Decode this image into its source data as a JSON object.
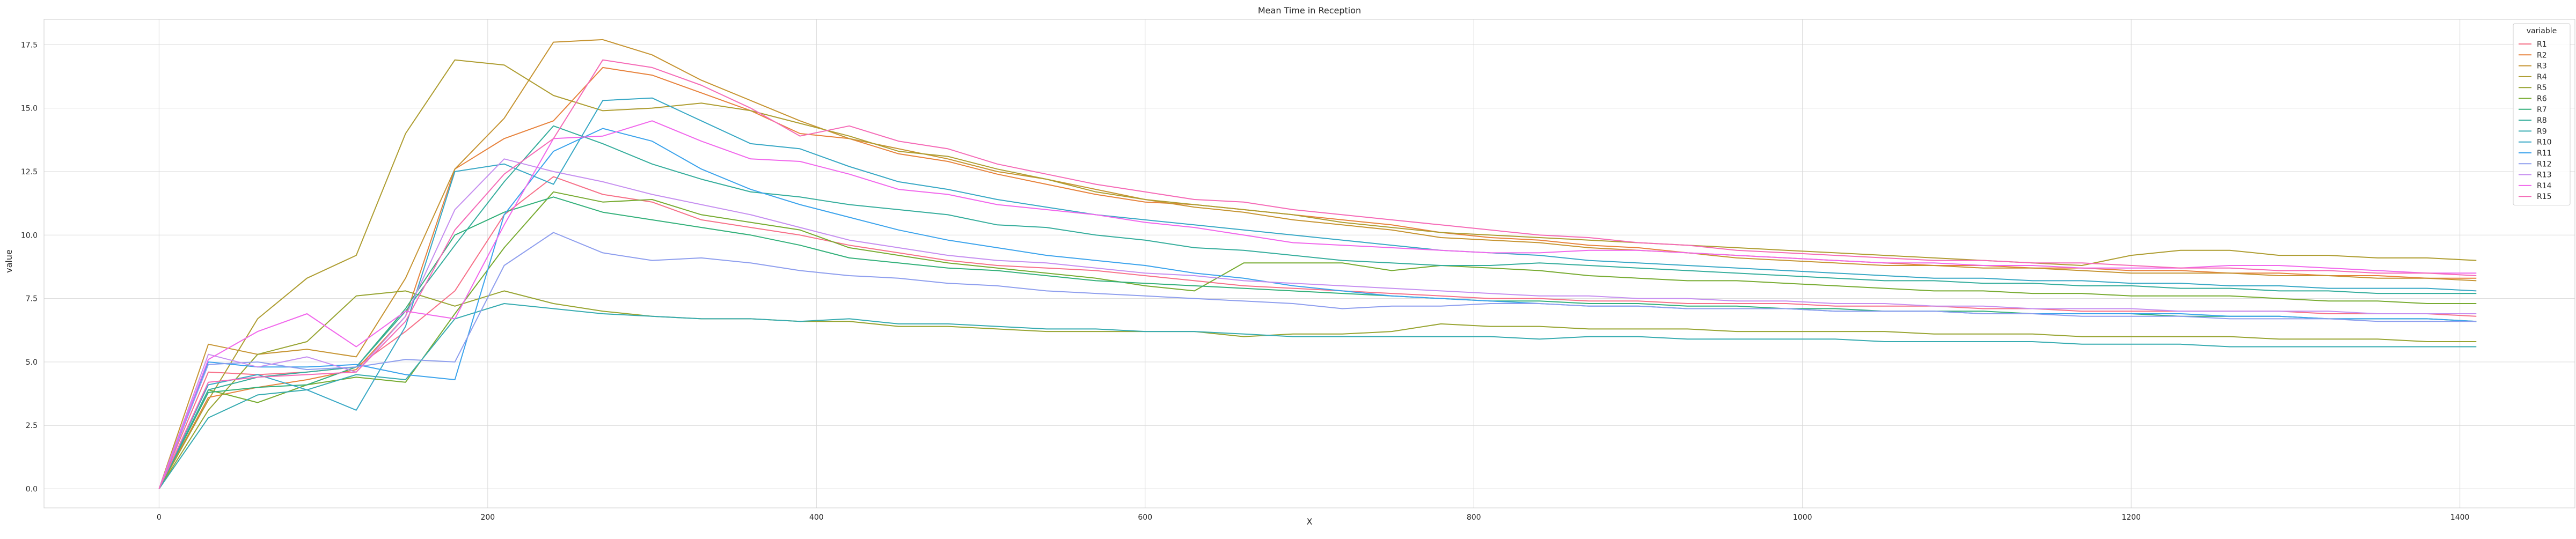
{
  "chart_data": {
    "type": "line",
    "title": "Mean Time in Reception",
    "xlabel": "X",
    "ylabel": "value",
    "xlim": [
      -70,
      1470
    ],
    "ylim": [
      -0.75,
      18.5
    ],
    "xticks": [
      0,
      200,
      400,
      600,
      800,
      1000,
      1200,
      1400
    ],
    "yticks": [
      0.0,
      2.5,
      5.0,
      7.5,
      10.0,
      12.5,
      15.0,
      17.5
    ],
    "xtick_labels": [
      "0",
      "200",
      "400",
      "600",
      "800",
      "1000",
      "1200",
      "1400"
    ],
    "ytick_labels": [
      "0.0",
      "2.5",
      "5.0",
      "7.5",
      "10.0",
      "12.5",
      "15.0",
      "17.5"
    ],
    "grid": true,
    "legend": {
      "title": "variable",
      "position": "top-right"
    },
    "x": [
      0,
      30,
      60,
      90,
      120,
      150,
      180,
      210,
      240,
      270,
      300,
      330,
      360,
      390,
      420,
      450,
      480,
      510,
      540,
      570,
      600,
      630,
      660,
      690,
      720,
      750,
      780,
      810,
      840,
      870,
      900,
      930,
      960,
      990,
      1020,
      1050,
      1080,
      1110,
      1140,
      1170,
      1200,
      1230,
      1260,
      1290,
      1320,
      1350,
      1380,
      1410
    ],
    "series": [
      {
        "name": "R1",
        "color": "#f77189",
        "values": [
          0,
          4.6,
          4.5,
          4.6,
          4.8,
          6.2,
          7.8,
          10.8,
          12.3,
          11.6,
          11.3,
          10.6,
          10.3,
          10.0,
          9.6,
          9.3,
          9.0,
          8.8,
          8.7,
          8.6,
          8.4,
          8.2,
          8.0,
          7.9,
          7.8,
          7.7,
          7.6,
          7.5,
          7.5,
          7.4,
          7.4,
          7.3,
          7.3,
          7.3,
          7.2,
          7.2,
          7.2,
          7.1,
          7.1,
          7.0,
          7.0,
          7.0,
          7.0,
          7.0,
          6.9,
          6.9,
          6.9,
          6.8
        ]
      },
      {
        "name": "R2",
        "color": "#e7823c",
        "values": [
          0,
          3.6,
          4.0,
          4.3,
          4.7,
          6.8,
          12.6,
          13.8,
          14.5,
          16.6,
          16.3,
          15.6,
          14.9,
          14.0,
          13.8,
          13.2,
          12.9,
          12.4,
          12.0,
          11.6,
          11.3,
          11.2,
          11.0,
          10.8,
          10.6,
          10.4,
          10.1,
          9.9,
          9.8,
          9.6,
          9.5,
          9.3,
          9.2,
          9.1,
          9.0,
          8.9,
          8.8,
          8.8,
          8.7,
          8.7,
          8.6,
          8.6,
          8.5,
          8.5,
          8.4,
          8.4,
          8.3,
          8.3
        ]
      },
      {
        "name": "R3",
        "color": "#c69432",
        "values": [
          0,
          5.7,
          5.3,
          5.5,
          5.2,
          8.3,
          12.6,
          14.6,
          17.6,
          17.7,
          17.1,
          16.1,
          15.3,
          14.5,
          13.8,
          13.4,
          13.0,
          12.5,
          12.2,
          11.8,
          11.4,
          11.1,
          10.9,
          10.6,
          10.4,
          10.2,
          9.9,
          9.8,
          9.7,
          9.5,
          9.4,
          9.3,
          9.1,
          9.0,
          8.9,
          8.8,
          8.8,
          8.7,
          8.7,
          8.6,
          8.5,
          8.5,
          8.5,
          8.4,
          8.4,
          8.3,
          8.3,
          8.2
        ]
      },
      {
        "name": "R4",
        "color": "#ae9d31",
        "values": [
          0,
          3.5,
          6.7,
          8.3,
          9.2,
          14.0,
          16.9,
          16.7,
          15.5,
          14.9,
          15.0,
          15.2,
          14.9,
          14.4,
          13.9,
          13.3,
          13.1,
          12.6,
          12.2,
          11.7,
          11.4,
          11.2,
          11.0,
          10.8,
          10.5,
          10.3,
          10.1,
          10.0,
          9.9,
          9.8,
          9.7,
          9.6,
          9.5,
          9.4,
          9.3,
          9.2,
          9.1,
          9.0,
          8.9,
          8.8,
          9.2,
          9.4,
          9.4,
          9.2,
          9.2,
          9.1,
          9.1,
          9.0
        ]
      },
      {
        "name": "R5",
        "color": "#97a431",
        "values": [
          0,
          3.1,
          5.3,
          5.8,
          7.6,
          7.8,
          7.2,
          7.8,
          7.3,
          7.0,
          6.8,
          6.7,
          6.7,
          6.6,
          6.6,
          6.4,
          6.4,
          6.3,
          6.2,
          6.2,
          6.2,
          6.2,
          6.0,
          6.1,
          6.1,
          6.2,
          6.5,
          6.4,
          6.4,
          6.3,
          6.3,
          6.3,
          6.2,
          6.2,
          6.2,
          6.2,
          6.1,
          6.1,
          6.1,
          6.0,
          6.0,
          6.0,
          6.0,
          5.9,
          5.9,
          5.9,
          5.8,
          5.8
        ]
      },
      {
        "name": "R6",
        "color": "#77ab31",
        "values": [
          0,
          3.9,
          3.4,
          4.1,
          4.4,
          4.2,
          6.9,
          9.5,
          11.7,
          11.3,
          11.4,
          10.8,
          10.5,
          10.2,
          9.5,
          9.2,
          8.9,
          8.7,
          8.5,
          8.3,
          8.0,
          7.8,
          8.9,
          8.9,
          8.9,
          8.6,
          8.8,
          8.7,
          8.6,
          8.4,
          8.3,
          8.2,
          8.2,
          8.1,
          8.0,
          7.9,
          7.8,
          7.8,
          7.7,
          7.7,
          7.6,
          7.6,
          7.6,
          7.5,
          7.4,
          7.4,
          7.3,
          7.3
        ]
      },
      {
        "name": "R7",
        "color": "#33b07a",
        "values": [
          0,
          3.8,
          4.0,
          4.1,
          4.8,
          7.1,
          10.0,
          10.9,
          11.5,
          10.9,
          10.6,
          10.3,
          10.0,
          9.6,
          9.1,
          8.9,
          8.7,
          8.6,
          8.4,
          8.2,
          8.1,
          8.0,
          7.9,
          7.8,
          7.7,
          7.6,
          7.5,
          7.4,
          7.4,
          7.3,
          7.3,
          7.2,
          7.2,
          7.1,
          7.1,
          7.0,
          7.0,
          7.0,
          6.9,
          6.9,
          6.9,
          6.8,
          6.8,
          6.8,
          6.7,
          6.7,
          6.7,
          6.6
        ]
      },
      {
        "name": "R8",
        "color": "#35ad9c",
        "values": [
          0,
          3.9,
          4.4,
          4.6,
          4.8,
          7.0,
          9.6,
          12.1,
          14.3,
          13.6,
          12.8,
          12.2,
          11.7,
          11.5,
          11.2,
          11.0,
          10.8,
          10.4,
          10.3,
          10.0,
          9.8,
          9.5,
          9.4,
          9.2,
          9.0,
          8.9,
          8.8,
          8.8,
          8.9,
          8.8,
          8.7,
          8.6,
          8.5,
          8.4,
          8.3,
          8.2,
          8.2,
          8.1,
          8.1,
          8.0,
          8.0,
          7.9,
          7.9,
          7.8,
          7.8,
          7.7,
          7.7,
          7.7
        ]
      },
      {
        "name": "R9",
        "color": "#36abb0",
        "values": [
          0,
          2.8,
          3.7,
          3.9,
          4.5,
          4.3,
          6.7,
          7.3,
          7.1,
          6.9,
          6.8,
          6.7,
          6.7,
          6.6,
          6.7,
          6.5,
          6.5,
          6.4,
          6.3,
          6.3,
          6.2,
          6.2,
          6.1,
          6.0,
          6.0,
          6.0,
          6.0,
          6.0,
          5.9,
          6.0,
          6.0,
          5.9,
          5.9,
          5.9,
          5.9,
          5.8,
          5.8,
          5.8,
          5.8,
          5.7,
          5.7,
          5.7,
          5.6,
          5.6,
          5.6,
          5.6,
          5.6,
          5.6
        ]
      },
      {
        "name": "R10",
        "color": "#38a8c5",
        "values": [
          0,
          4.1,
          4.5,
          3.9,
          3.1,
          6.4,
          12.5,
          12.8,
          12.0,
          15.3,
          15.4,
          14.5,
          13.6,
          13.4,
          12.7,
          12.1,
          11.8,
          11.4,
          11.1,
          10.8,
          10.6,
          10.4,
          10.2,
          10.0,
          9.8,
          9.6,
          9.4,
          9.3,
          9.2,
          9.0,
          8.9,
          8.8,
          8.7,
          8.6,
          8.5,
          8.4,
          8.3,
          8.3,
          8.2,
          8.2,
          8.1,
          8.1,
          8.0,
          8.0,
          7.9,
          7.9,
          7.9,
          7.8
        ]
      },
      {
        "name": "R11",
        "color": "#3ba3ec",
        "values": [
          0,
          5.0,
          4.8,
          4.8,
          4.9,
          4.5,
          4.3,
          10.8,
          13.3,
          14.2,
          13.7,
          12.6,
          11.8,
          11.2,
          10.7,
          10.2,
          9.8,
          9.5,
          9.2,
          9.0,
          8.8,
          8.5,
          8.3,
          8.0,
          7.8,
          7.6,
          7.5,
          7.4,
          7.3,
          7.2,
          7.2,
          7.1,
          7.1,
          7.1,
          7.0,
          7.0,
          7.0,
          6.9,
          6.9,
          6.9,
          6.9,
          6.9,
          6.8,
          6.8,
          6.7,
          6.7,
          6.7,
          6.6
        ]
      },
      {
        "name": "R12",
        "color": "#8e9eee",
        "values": [
          0,
          4.9,
          5.0,
          4.7,
          4.8,
          5.1,
          5.0,
          8.8,
          10.1,
          9.3,
          9.0,
          9.1,
          8.9,
          8.6,
          8.4,
          8.3,
          8.1,
          8.0,
          7.8,
          7.7,
          7.6,
          7.5,
          7.4,
          7.3,
          7.1,
          7.2,
          7.2,
          7.3,
          7.3,
          7.2,
          7.2,
          7.1,
          7.1,
          7.1,
          7.0,
          7.0,
          7.0,
          6.9,
          6.9,
          6.8,
          6.8,
          6.8,
          6.7,
          6.7,
          6.7,
          6.6,
          6.6,
          6.6
        ]
      },
      {
        "name": "R13",
        "color": "#c68ff0",
        "values": [
          0,
          5.3,
          4.8,
          5.2,
          4.6,
          6.8,
          11.0,
          13.0,
          12.5,
          12.1,
          11.6,
          11.2,
          10.8,
          10.3,
          9.8,
          9.5,
          9.2,
          9.0,
          8.9,
          8.7,
          8.5,
          8.4,
          8.2,
          8.1,
          8.0,
          7.9,
          7.8,
          7.7,
          7.6,
          7.6,
          7.5,
          7.5,
          7.4,
          7.4,
          7.3,
          7.3,
          7.2,
          7.2,
          7.1,
          7.1,
          7.1,
          7.0,
          7.0,
          7.0,
          7.0,
          6.9,
          6.9,
          6.9
        ]
      },
      {
        "name": "R14",
        "color": "#f167ec",
        "values": [
          0,
          5.1,
          6.2,
          6.9,
          5.6,
          7.0,
          6.7,
          10.4,
          13.8,
          13.9,
          14.5,
          13.7,
          13.0,
          12.9,
          12.4,
          11.8,
          11.6,
          11.2,
          11.0,
          10.8,
          10.5,
          10.3,
          10.0,
          9.7,
          9.6,
          9.5,
          9.4,
          9.3,
          9.3,
          9.4,
          9.4,
          9.3,
          9.2,
          9.1,
          9.0,
          8.9,
          8.9,
          8.8,
          8.8,
          8.7,
          8.7,
          8.7,
          8.8,
          8.8,
          8.7,
          8.6,
          8.5,
          8.5
        ]
      },
      {
        "name": "R15",
        "color": "#f56bb7",
        "values": [
          0,
          4.2,
          4.4,
          4.5,
          4.6,
          6.6,
          10.2,
          12.4,
          13.8,
          16.9,
          16.6,
          15.9,
          15.0,
          13.9,
          14.3,
          13.7,
          13.4,
          12.8,
          12.4,
          12.0,
          11.7,
          11.4,
          11.3,
          11.0,
          10.8,
          10.6,
          10.4,
          10.2,
          10.0,
          9.9,
          9.7,
          9.6,
          9.4,
          9.3,
          9.2,
          9.1,
          9.0,
          9.0,
          8.9,
          8.9,
          8.8,
          8.7,
          8.7,
          8.6,
          8.6,
          8.5,
          8.5,
          8.4
        ]
      }
    ]
  }
}
